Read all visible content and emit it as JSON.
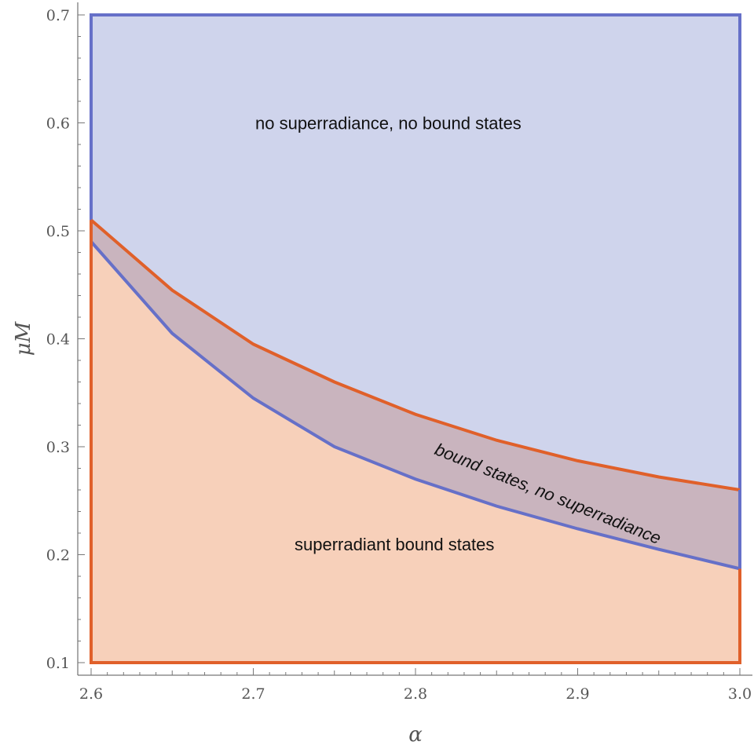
{
  "chart_data": {
    "type": "area",
    "title": "",
    "xlabel": "α",
    "ylabel": "μM",
    "xlim": [
      2.6,
      3.0
    ],
    "ylim": [
      0.1,
      0.7
    ],
    "xticks": [
      "2.6",
      "2.7",
      "2.8",
      "2.9",
      "3.0"
    ],
    "yticks": [
      "0.1",
      "0.2",
      "0.3",
      "0.4",
      "0.5",
      "0.6",
      "0.7"
    ],
    "grid": false,
    "legend": "none",
    "x": [
      2.6,
      2.65,
      2.7,
      2.75,
      2.8,
      2.85,
      2.9,
      2.95,
      3.0
    ],
    "series": [
      {
        "values": [
          0.51,
          0.445,
          0.395,
          0.36,
          0.33,
          0.306,
          0.287,
          0.272,
          0.26
        ],
        "color": "#e0602a"
      },
      {
        "values": [
          0.49,
          0.405,
          0.345,
          0.3,
          0.27,
          0.245,
          0.224,
          0.205,
          0.187
        ],
        "color": "#6670c8"
      }
    ],
    "regions": [
      {
        "color": "#cfd4ec"
      },
      {
        "color": "#c9b4be"
      },
      {
        "color": "#f7d0ba"
      }
    ],
    "annotations": [
      {
        "text": "no superradiance, no bound states",
        "x": 2.7,
        "y": 0.6
      },
      {
        "text": "superradiant bound states",
        "x": 2.8,
        "y": 0.21
      },
      {
        "text": "bound states, no superradiance",
        "x": 2.9,
        "y": 0.26
      }
    ]
  }
}
